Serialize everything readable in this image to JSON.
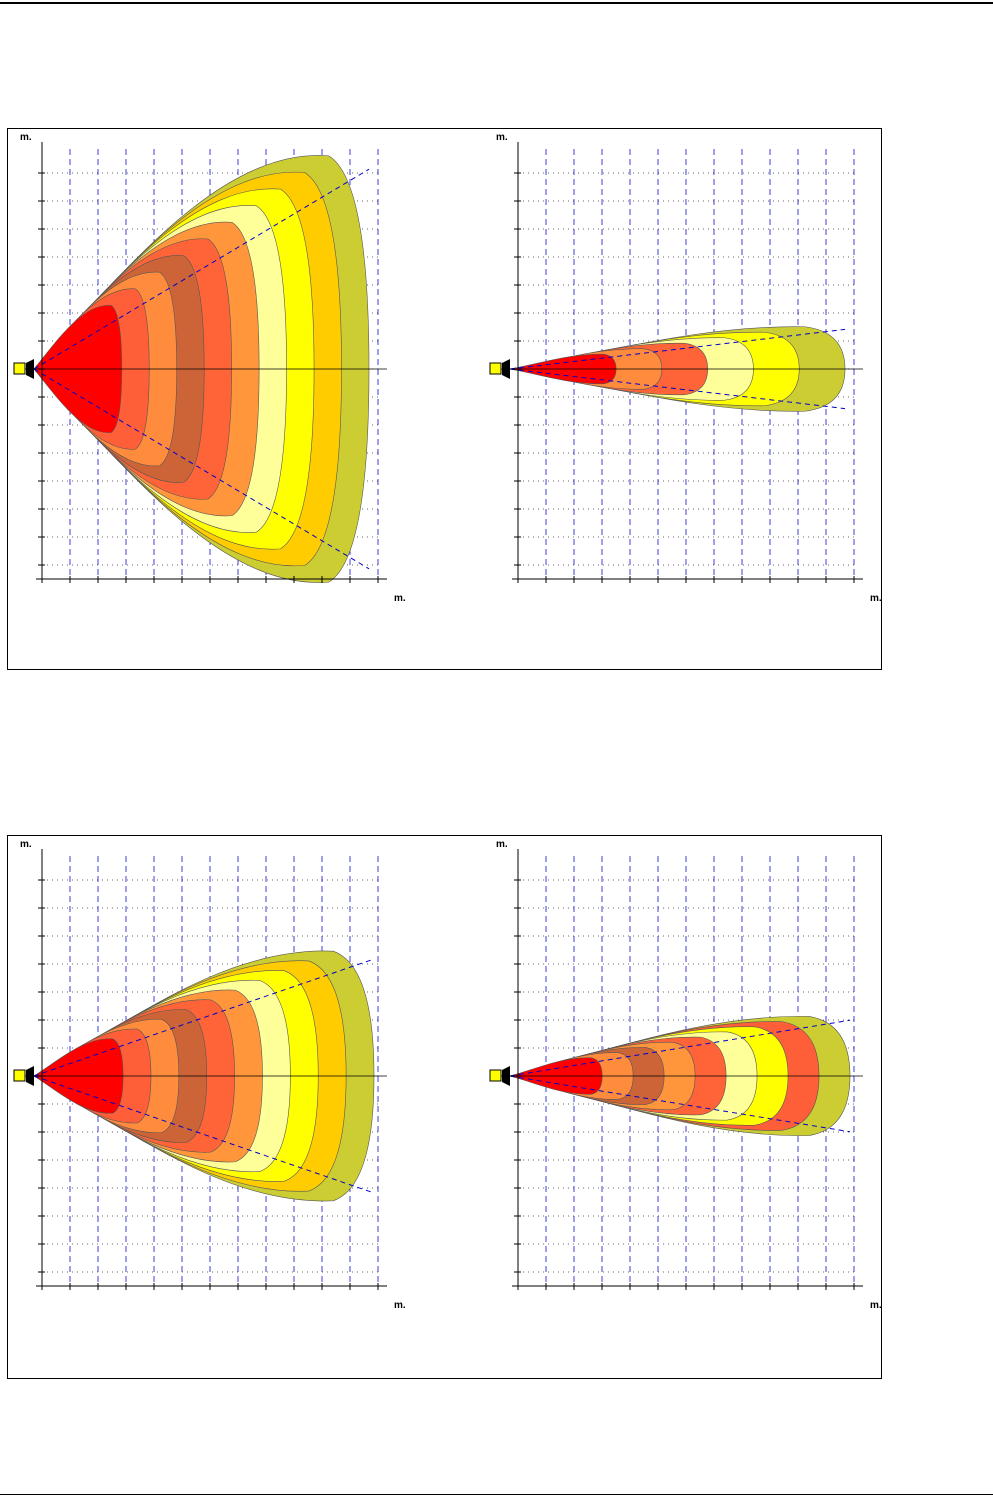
{
  "axis_unit_label": "m.",
  "colors": {
    "zone_1": "#ff0000",
    "zone_2": "#ff5f38",
    "zone_3": "#ff8c3c",
    "zone_4": "#cd6437",
    "zone_5": "#ff6438",
    "zone_6": "#ff963c",
    "zone_7": "#ffff9a",
    "zone_8": "#ffff00",
    "zone_9": "#ffcc00",
    "zone_10": "#cccc33",
    "grid_major": "#0000cc",
    "grid_minor": "#333333",
    "sensor": "#ffff00"
  },
  "figures": [
    {
      "name": "figure-1",
      "plots": [
        {
          "name": "plot-wide-horizontal",
          "shape": "wide",
          "zones": [
            "zone_1",
            "zone_2",
            "zone_3",
            "zone_4",
            "zone_5",
            "zone_6",
            "zone_7",
            "zone_8",
            "zone_9",
            "zone_10"
          ]
        },
        {
          "name": "plot-narrow-vertical",
          "shape": "narrow",
          "zones": [
            "zone_1",
            "zone_3",
            "zone_5",
            "zone_7",
            "zone_8",
            "zone_10"
          ]
        }
      ]
    },
    {
      "name": "figure-2",
      "plots": [
        {
          "name": "plot-medium-horizontal",
          "shape": "medium",
          "zones": [
            "zone_1",
            "zone_2",
            "zone_3",
            "zone_4",
            "zone_5",
            "zone_6",
            "zone_7",
            "zone_8",
            "zone_9",
            "zone_10"
          ]
        },
        {
          "name": "plot-medium-vertical",
          "shape": "medium-narrow",
          "zones": [
            "zone_1",
            "zone_3",
            "zone_4",
            "zone_6",
            "zone_5",
            "zone_7",
            "zone_8",
            "zone_2",
            "zone_10"
          ]
        }
      ]
    }
  ]
}
